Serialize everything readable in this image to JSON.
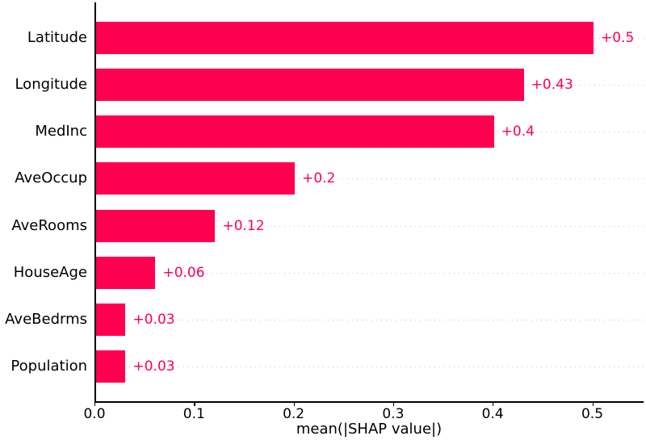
{
  "figure": {
    "background": "#ffffff"
  },
  "chart_data": {
    "type": "bar",
    "orientation": "horizontal",
    "title": "",
    "xlabel": "mean(|SHAP value|)",
    "ylabel": "",
    "categories": [
      "Latitude",
      "Longitude",
      "MedInc",
      "AveOccup",
      "AveRooms",
      "HouseAge",
      "AveBedrms",
      "Population"
    ],
    "values": [
      0.5,
      0.43,
      0.4,
      0.2,
      0.12,
      0.06,
      0.03,
      0.03
    ],
    "value_labels": [
      "+0.5",
      "+0.43",
      "+0.4",
      "+0.2",
      "+0.12",
      "+0.06",
      "+0.03",
      "+0.03"
    ],
    "xticks": [
      0.0,
      0.1,
      0.2,
      0.3,
      0.4,
      0.5
    ],
    "xtick_labels": [
      "0.0",
      "0.1",
      "0.2",
      "0.3",
      "0.4",
      "0.5"
    ],
    "xlim": [
      0,
      0.552
    ],
    "grid": "dotted horizontal line at each bar center",
    "legend": "none",
    "colors": {
      "bar": "#ff0051",
      "value_label": "#ff0051",
      "axis": "#000000",
      "gridline": "#c3c3c3",
      "tick_label": "#000000"
    }
  }
}
